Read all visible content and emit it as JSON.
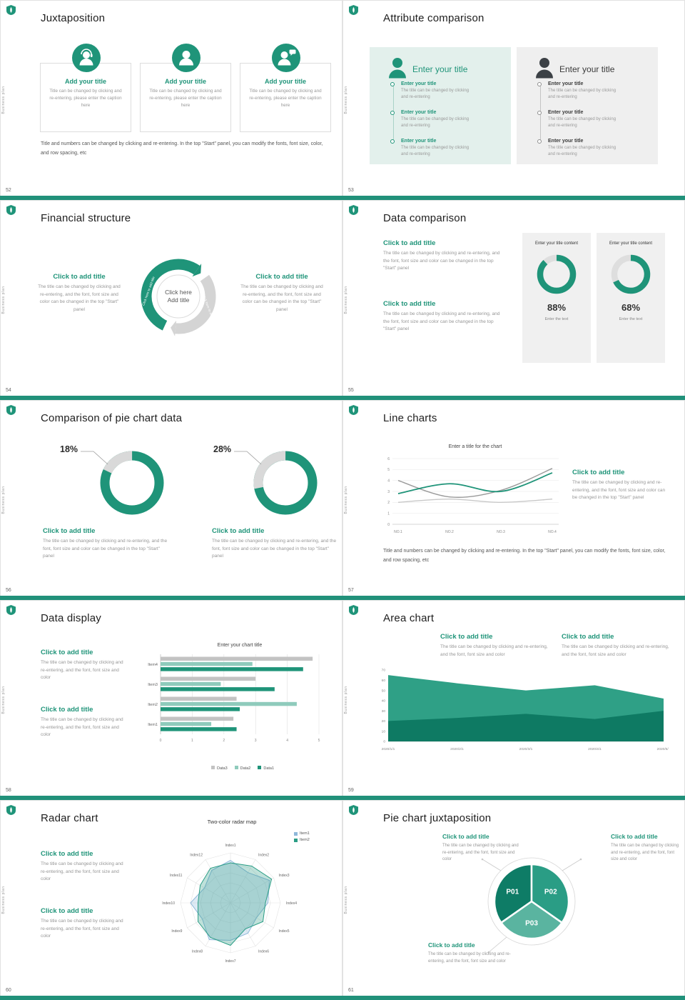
{
  "theme": {
    "accent": "#1f9479",
    "accent_dark": "#0e7a63",
    "accent_pale": "#8fcbbc",
    "panel_teal": "#e3f0ec",
    "panel_gray": "#efefef",
    "bar_gray": "#c3c3c3",
    "sidebar_text": "Business plan"
  },
  "slides": {
    "s52": {
      "page": "52",
      "title": "Juxtaposition",
      "cards": [
        {
          "icon": "person-headset-icon",
          "heading": "Add your title",
          "caption": "Title can be changed by clicking and re-entering, please enter the caption here"
        },
        {
          "icon": "person-icon",
          "heading": "Add your title",
          "caption": "Title can be changed by clicking and re-entering, please enter the caption here"
        },
        {
          "icon": "person-chat-icon",
          "heading": "Add your title",
          "caption": "Title can be changed by clicking and re-entering, please enter the caption here"
        }
      ],
      "footer": "Title and numbers can be changed by clicking and re-entering. In the top \"Start\" panel, you can modify the fonts, font size, color, and row spacing, etc"
    },
    "s53": {
      "page": "53",
      "title": "Attribute comparison",
      "panels": [
        {
          "heading": "Enter your title",
          "entries": [
            {
              "title": "Enter your title",
              "caption": "The title can be changed by clicking and re-entering"
            },
            {
              "title": "Enter your title",
              "caption": "The title can be changed by clicking and re-entering"
            },
            {
              "title": "Enter your title",
              "caption": "The title can be changed by clicking and re-entering"
            }
          ]
        },
        {
          "heading": "Enter your title",
          "entries": [
            {
              "title": "Enter your title",
              "caption": "The title can be changed by clicking and re-entering"
            },
            {
              "title": "Enter your title",
              "caption": "The title can be changed by clicking and re-entering"
            },
            {
              "title": "Enter your title",
              "caption": "The title can be changed by clicking and re-entering"
            }
          ]
        }
      ]
    },
    "s54": {
      "page": "54",
      "title": "Financial structure",
      "left": {
        "heading": "Click to add title",
        "caption": "The title can be changed by clicking and re-entering, and the font, font size and color can be changed in the top \"Start\" panel"
      },
      "right": {
        "heading": "Click to add title",
        "caption": "The title can be changed by clicking and re-entering, and the font, font size and color can be changed in the top \"Start\" panel"
      },
      "center_line1": "Click here",
      "center_line2": "Add title",
      "arc_label_left": "Click here to add title",
      "arc_label_right": "Click here to add title"
    },
    "s55": {
      "page": "55",
      "title": "Data comparison",
      "blocks": [
        {
          "heading": "Click to add title",
          "caption": "The title can be changed by clicking and re-entering, and the font, font size and color can be changed in the top \"Start\" panel"
        },
        {
          "heading": "Click to add title",
          "caption": "The title can be changed by clicking and re-entering, and the font, font size and color can be changed in the top \"Start\" panel"
        }
      ],
      "panels": [
        {
          "header": "Enter your title content",
          "percent": 88,
          "percent_label": "88%",
          "footer": "Enter the text"
        },
        {
          "header": "Enter your title content",
          "percent": 68,
          "percent_label": "68%",
          "footer": "Enter the text"
        }
      ]
    },
    "s56": {
      "page": "56",
      "title": "Comparison of pie chart data",
      "donuts": [
        {
          "percent": 18,
          "label": "18%",
          "heading": "Click to add title",
          "caption": "The title can be changed by clicking and re-entering, and the font, font size and color can be changed in the top \"Start\" panel"
        },
        {
          "percent": 28,
          "label": "28%",
          "heading": "Click to add title",
          "caption": "The title can be changed by clicking and re-entering, and the font, font size and color can be changed in the top \"Start\" panel"
        }
      ]
    },
    "s57": {
      "page": "57",
      "title": "Line charts",
      "chart_data": {
        "type": "line",
        "title": "Enter a title for the chart",
        "x": [
          "NO.1",
          "NO.2",
          "NO.3",
          "NO.4"
        ],
        "ylim": [
          0,
          6
        ],
        "yticks": [
          0,
          1,
          2,
          3,
          4,
          5,
          6
        ],
        "grid": true,
        "series": [
          {
            "name": "series-gray-light",
            "color": "#c8c8c8",
            "values": [
              2.0,
              2.3,
              2.0,
              2.3
            ]
          },
          {
            "name": "series-gray-dark",
            "color": "#9a9a9a",
            "values": [
              4.0,
              2.5,
              3.1,
              5.1
            ]
          },
          {
            "name": "teal",
            "color": "#1f9479",
            "values": [
              2.8,
              3.7,
              3.0,
              4.7
            ]
          }
        ]
      },
      "block": {
        "heading": "Click to add title",
        "caption": "The title can be changed by clicking and re-entering, and the font, font size and color can be changed in the top \"Start\" panel"
      },
      "footer": "Title and numbers can be changed by clicking and re-entering. In the top \"Start\" panel, you can modify the fonts, font size, color, and row spacing, etc"
    },
    "s58": {
      "page": "58",
      "title": "Data display",
      "blocks": [
        {
          "heading": "Click to add title",
          "caption": "The title can be changed by clicking and re-entering, and the font, font size and color"
        },
        {
          "heading": "Click to add title",
          "caption": "The title can be changed by clicking and re-entering, and the font, font size and color"
        }
      ],
      "chart_data": {
        "type": "bar",
        "orientation": "horizontal",
        "title": "Enter your chart title",
        "categories": [
          "Item1",
          "Item2",
          "Item3",
          "Item4"
        ],
        "xlim": [
          0,
          5
        ],
        "xticks": [
          0,
          1,
          2,
          3,
          4,
          5
        ],
        "legend": [
          "Data3",
          "Data2",
          "Data1"
        ],
        "series": [
          {
            "name": "Data1",
            "color": "#1f9479",
            "values": [
              2.4,
              2.5,
              3.6,
              4.5
            ]
          },
          {
            "name": "Data2",
            "color": "#8fcbbc",
            "values": [
              1.6,
              4.3,
              1.9,
              2.9
            ]
          },
          {
            "name": "Data3",
            "color": "#c3c3c3",
            "values": [
              2.3,
              2.4,
              3.0,
              4.8
            ]
          }
        ]
      }
    },
    "s59": {
      "page": "59",
      "title": "Area chart",
      "blocks": [
        {
          "heading": "Click to add title",
          "caption": "The title can be changed by clicking and re-entering, and the font, font size and color"
        },
        {
          "heading": "Click to add title",
          "caption": "The title can be changed by clicking and re-entering, and the font, font size and color"
        }
      ],
      "chart_data": {
        "type": "area",
        "x": [
          "2020/1/1",
          "2020/2/1",
          "2020/3/1",
          "2020/4/1",
          "2020/5/1"
        ],
        "ylim": [
          0,
          70
        ],
        "yticks": [
          0,
          10,
          20,
          30,
          40,
          50,
          60,
          70
        ],
        "series": [
          {
            "name": "upper",
            "color": "#2fa086",
            "values": [
              65,
              57,
              50,
              55,
              42
            ]
          },
          {
            "name": "lower",
            "color": "#0e7a63",
            "values": [
              20,
              23,
              27,
              22,
              30
            ]
          }
        ]
      }
    },
    "s60": {
      "page": "60",
      "title": "Radar chart",
      "blocks": [
        {
          "heading": "Click to add title",
          "caption": "The title can be changed by clicking and re-entering, and the font, font size and color"
        },
        {
          "heading": "Click to add title",
          "caption": "The title can be changed by clicking and re-entering, and the font, font size and color"
        }
      ],
      "chart_data": {
        "type": "radar",
        "title": "Two-color radar map",
        "axes": [
          "Index1",
          "Index2",
          "Index3",
          "Index4",
          "Index5",
          "Index6",
          "Index7",
          "Index8",
          "Index9",
          "Index10",
          "Index11",
          "Index12"
        ],
        "max": 1,
        "series": [
          {
            "name": "Item1",
            "color": "#8fb8da",
            "values": [
              0.85,
              0.7,
              0.9,
              0.75,
              0.6,
              0.7,
              0.75,
              0.85,
              0.65,
              0.8,
              0.6,
              0.75
            ]
          },
          {
            "name": "Item2",
            "color": "#2a9d85",
            "values": [
              0.8,
              0.85,
              0.95,
              0.7,
              0.75,
              0.6,
              0.85,
              0.8,
              0.75,
              0.65,
              0.7,
              0.8
            ]
          }
        ]
      }
    },
    "s61": {
      "page": "61",
      "title": "Pie chart juxtaposition",
      "blocks": [
        {
          "heading": "Click to add title",
          "caption": "The title can be changed by clicking and re-entering, and the font, font size and color"
        },
        {
          "heading": "Click to add title",
          "caption": "The title can be changed by clicking and re-entering, and the font, font size and color"
        },
        {
          "heading": "Click to add title",
          "caption": "The title can be changed by clicking and re-entering, and the font, font size and color"
        }
      ],
      "chart_data": {
        "type": "pie",
        "slices": [
          {
            "label": "P01",
            "color": "#0e7c66",
            "start": 235,
            "end": 360
          },
          {
            "label": "P02",
            "color": "#2a9d85",
            "start": 0,
            "end": 125
          },
          {
            "label": "P03",
            "color": "#5ab4a0",
            "start": 125,
            "end": 235
          }
        ]
      }
    }
  }
}
